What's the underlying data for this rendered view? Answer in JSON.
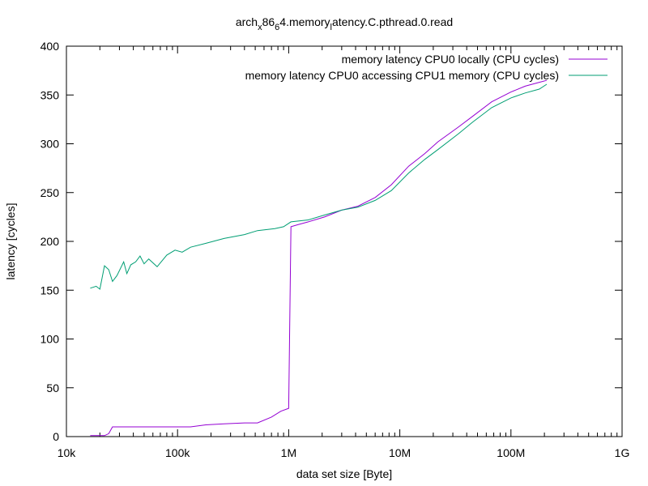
{
  "chart_data": {
    "type": "line",
    "title": "arch_x86_64.memory_latency.C.pthread.0.read",
    "xlabel": "data set size [Byte]",
    "ylabel": "latency [cycles]",
    "xscale": "log",
    "xlim": [
      10000,
      1000000000
    ],
    "ylim": [
      0,
      400
    ],
    "grid": false,
    "legend_position": "top-right",
    "xticks": [
      {
        "value": 10000,
        "label": "10k"
      },
      {
        "value": 100000,
        "label": "100k"
      },
      {
        "value": 1000000,
        "label": "1M"
      },
      {
        "value": 10000000,
        "label": "10M"
      },
      {
        "value": 100000000,
        "label": "100M"
      },
      {
        "value": 1000000000,
        "label": "1G"
      }
    ],
    "yticks": [
      0,
      50,
      100,
      150,
      200,
      250,
      300,
      350,
      400
    ],
    "series": [
      {
        "name": "memory latency CPU0 locally (CPU cycles)",
        "color": "#9400d3",
        "points": [
          [
            16384,
            1
          ],
          [
            19000,
            1
          ],
          [
            22000,
            1
          ],
          [
            24000,
            3
          ],
          [
            26000,
            10
          ],
          [
            32768,
            10
          ],
          [
            65536,
            10
          ],
          [
            131072,
            10
          ],
          [
            180000,
            12
          ],
          [
            262144,
            13
          ],
          [
            400000,
            14
          ],
          [
            524288,
            14
          ],
          [
            700000,
            20
          ],
          [
            850000,
            26
          ],
          [
            1000000,
            29
          ],
          [
            1048576,
            215
          ],
          [
            1200000,
            217
          ],
          [
            1500000,
            220
          ],
          [
            2097152,
            225
          ],
          [
            3000000,
            232
          ],
          [
            4194304,
            236
          ],
          [
            6000000,
            245
          ],
          [
            8388608,
            258
          ],
          [
            12000000,
            277
          ],
          [
            16777216,
            290
          ],
          [
            22000000,
            302
          ],
          [
            33554432,
            317
          ],
          [
            45000000,
            328
          ],
          [
            67108864,
            343
          ],
          [
            100000000,
            353
          ],
          [
            134217728,
            359
          ],
          [
            180000000,
            363
          ],
          [
            210000000,
            365
          ]
        ]
      },
      {
        "name": "memory latency CPU0 accessing CPU1 memory (CPU cycles)",
        "color": "#009e73",
        "points": [
          [
            16384,
            152
          ],
          [
            18500,
            154
          ],
          [
            20000,
            151
          ],
          [
            22000,
            175
          ],
          [
            24000,
            171
          ],
          [
            26000,
            159
          ],
          [
            28500,
            165
          ],
          [
            32768,
            179
          ],
          [
            35000,
            167
          ],
          [
            38000,
            176
          ],
          [
            42000,
            179
          ],
          [
            46000,
            185
          ],
          [
            50000,
            177
          ],
          [
            55000,
            182
          ],
          [
            65536,
            174
          ],
          [
            80000,
            186
          ],
          [
            95000,
            191
          ],
          [
            110000,
            189
          ],
          [
            131072,
            194
          ],
          [
            180000,
            198
          ],
          [
            262144,
            203
          ],
          [
            400000,
            207
          ],
          [
            524288,
            211
          ],
          [
            750000,
            213
          ],
          [
            900000,
            215
          ],
          [
            1048576,
            220
          ],
          [
            1500000,
            222
          ],
          [
            2097152,
            227
          ],
          [
            3000000,
            232
          ],
          [
            4194304,
            235
          ],
          [
            6000000,
            242
          ],
          [
            8388608,
            252
          ],
          [
            12000000,
            270
          ],
          [
            16777216,
            284
          ],
          [
            22000000,
            294
          ],
          [
            33554432,
            310
          ],
          [
            45000000,
            322
          ],
          [
            67108864,
            337
          ],
          [
            100000000,
            347
          ],
          [
            134217728,
            352
          ],
          [
            180000000,
            356
          ],
          [
            210000000,
            361
          ]
        ]
      }
    ]
  }
}
